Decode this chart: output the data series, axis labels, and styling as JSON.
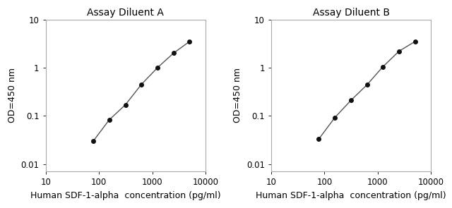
{
  "chart_A": {
    "title": "Assay Diluent A",
    "x": [
      78,
      156,
      313,
      625,
      1250,
      2500,
      5000
    ],
    "y": [
      0.03,
      0.083,
      0.17,
      0.45,
      1.0,
      2.0,
      3.5
    ]
  },
  "chart_B": {
    "title": "Assay Diluent B",
    "x": [
      78,
      156,
      313,
      625,
      1250,
      2500,
      5000
    ],
    "y": [
      0.033,
      0.092,
      0.21,
      0.44,
      1.05,
      2.2,
      3.5
    ]
  },
  "xlabel": "Human SDF-1-alpha  concentration (pg/ml)",
  "ylabel": "OD=450 nm",
  "xlim": [
    10,
    10000
  ],
  "ylim": [
    0.007,
    10
  ],
  "xticks": [
    10,
    100,
    1000,
    10000
  ],
  "xtick_labels": [
    "10",
    "100",
    "1000",
    "10000"
  ],
  "yticks": [
    0.01,
    0.1,
    1,
    10
  ],
  "ytick_labels": [
    "0.01",
    "0.1",
    "1",
    "10"
  ],
  "line_color": "#555555",
  "marker_color": "#111111",
  "bg_color": "#ffffff",
  "fig_bg_color": "#ffffff",
  "title_fontsize": 10,
  "label_fontsize": 9,
  "tick_fontsize": 8.5
}
